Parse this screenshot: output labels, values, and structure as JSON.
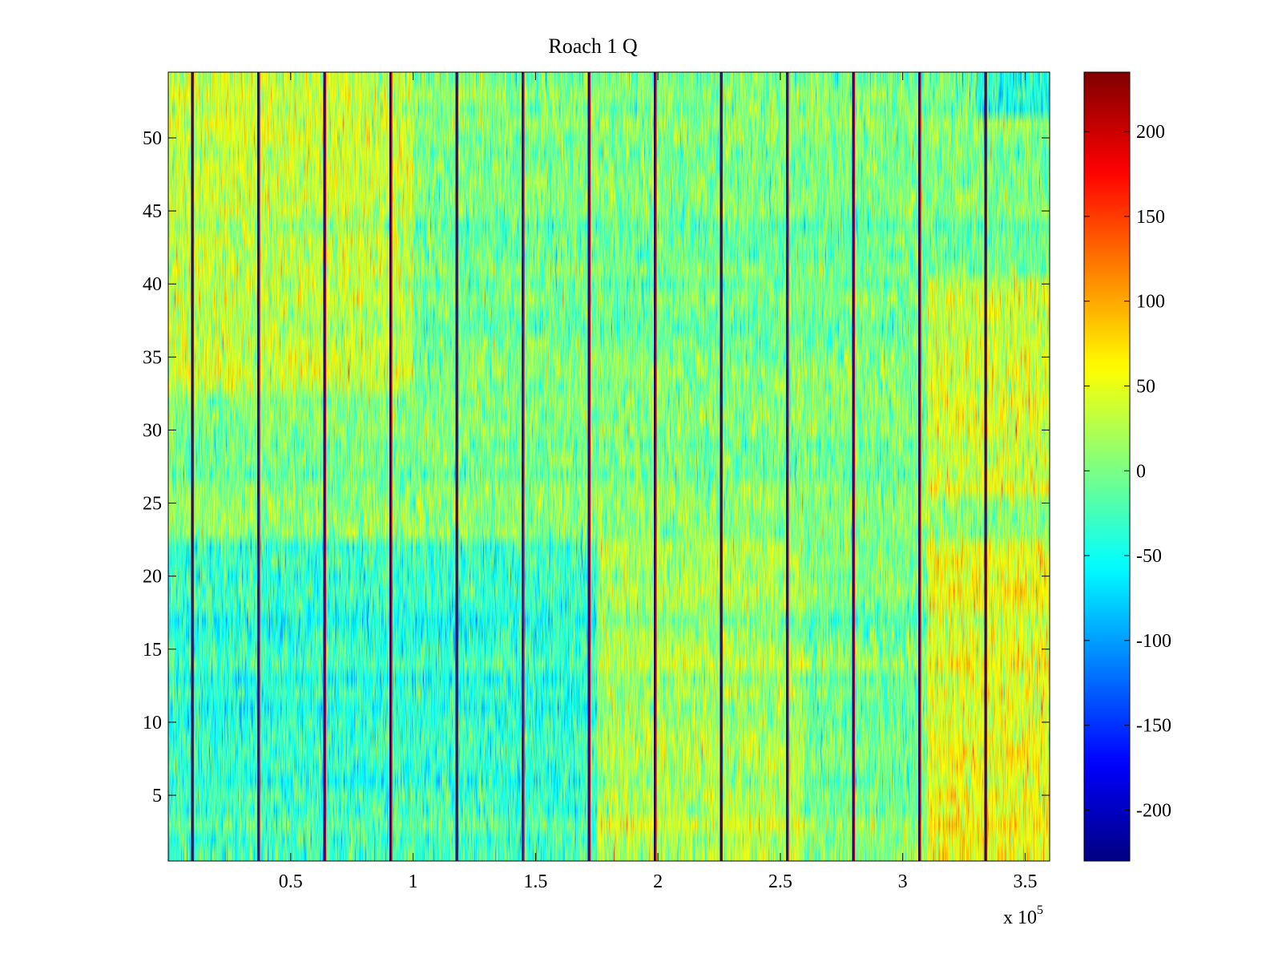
{
  "chart_data": {
    "type": "heatmap",
    "title": "Roach 1 Q",
    "xlabel": "",
    "ylabel": "",
    "x_multiplier_label": "x 10",
    "x_multiplier_exponent": "5",
    "xlim": [
      0,
      3.6
    ],
    "ylim": [
      0.5,
      54.5
    ],
    "rows": 54,
    "x_ticks": [
      0.5,
      1,
      1.5,
      2,
      2.5,
      3,
      3.5
    ],
    "x_tick_labels": [
      "0.5",
      "1",
      "1.5",
      "2",
      "2.5",
      "3",
      "3.5"
    ],
    "y_ticks": [
      5,
      10,
      15,
      20,
      25,
      30,
      35,
      40,
      45,
      50
    ],
    "y_tick_labels": [
      "5",
      "10",
      "15",
      "20",
      "25",
      "30",
      "35",
      "40",
      "45",
      "50"
    ],
    "colorbar": {
      "colormap": "jet",
      "range": [
        -230,
        235
      ],
      "ticks": [
        -200,
        -150,
        -100,
        -50,
        0,
        50,
        100,
        150,
        200
      ],
      "tick_labels": [
        "-200",
        "-150",
        "-100",
        "-50",
        "0",
        "50",
        "100",
        "150",
        "200"
      ]
    },
    "vertical_streaks_x": [
      0.1,
      0.37,
      0.64,
      0.91,
      1.18,
      1.45,
      1.72,
      1.99,
      2.26,
      2.53,
      2.8,
      3.07,
      3.34
    ],
    "region_bias": [
      {
        "x_range": [
          0.0,
          1.0
        ],
        "row_range": [
          33,
          54
        ],
        "mean": 35
      },
      {
        "x_range": [
          0.0,
          1.8
        ],
        "row_range": [
          1,
          22
        ],
        "mean": -30
      },
      {
        "x_range": [
          1.75,
          2.6
        ],
        "row_range": [
          1,
          22
        ],
        "mean": 25
      },
      {
        "x_range": [
          3.1,
          3.6
        ],
        "row_range": [
          1,
          22
        ],
        "mean": 55
      },
      {
        "x_range": [
          3.1,
          3.6
        ],
        "row_range": [
          26,
          40
        ],
        "mean": 40
      },
      {
        "x_range": [
          3.3,
          3.6
        ],
        "row_range": [
          52,
          54
        ],
        "mean": -45
      }
    ],
    "base_mean": 0,
    "noise_spread": 30
  }
}
